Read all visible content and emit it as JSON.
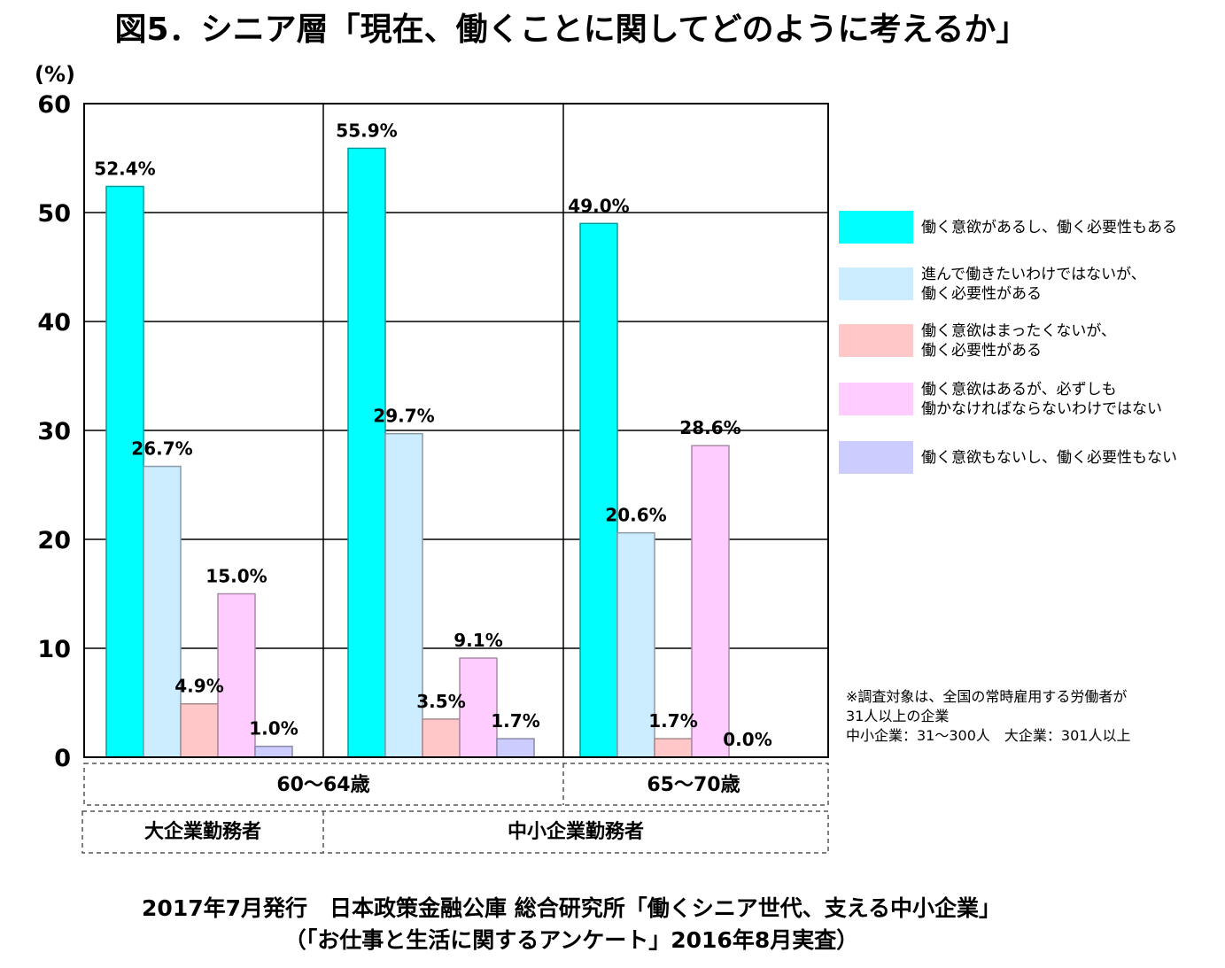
{
  "title": "図5．シニア層「現在、働くことに関してどのように考えるか」",
  "chart_data": {
    "type": "bar",
    "yunit": "(%)",
    "ylim": [
      0,
      60
    ],
    "yticks": [
      "0",
      "10",
      "20",
      "30",
      "40",
      "50",
      "60"
    ],
    "grid": true,
    "legend_position": "right",
    "series": [
      {
        "name": "働く意欲があるし、働く必要性もある",
        "color": "#00FFFF"
      },
      {
        "name": "進んで働きたいわけではないが、働く必要性がある",
        "color": "#CCECFF"
      },
      {
        "name": "働く意欲はまったくないが、働く必要性がある",
        "color": "#FFC7C7"
      },
      {
        "name": "働く意欲はあるが、必ずしも働かなければならないわけではない",
        "color": "#FFCCFF"
      },
      {
        "name": "働く意欲もないし、働く必要性もない",
        "color": "#CCCCFF"
      }
    ],
    "legend_lines": [
      [
        "働く意欲があるし、働く必要性もある"
      ],
      [
        "進んで働きたいわけではないが、",
        "働く必要性がある"
      ],
      [
        "働く意欲はまったくないが、",
        "働く必要性がある"
      ],
      [
        "働く意欲はあるが、必ずしも",
        "働かなければならないわけではない"
      ],
      [
        "働く意欲もないし、働く必要性もない"
      ]
    ],
    "groups": [
      {
        "age": "60〜64歳",
        "company": "大企業勤務者",
        "values": [
          52.4,
          26.7,
          4.9,
          15.0,
          1.0
        ],
        "labels": [
          "52.4%",
          "26.7%",
          "4.9%",
          "15.0%",
          "1.0%"
        ]
      },
      {
        "age": "60〜64歳",
        "company": "中小企業勤務者",
        "values": [
          55.9,
          29.7,
          3.5,
          9.1,
          1.7
        ],
        "labels": [
          "55.9%",
          "29.7%",
          "3.5%",
          "9.1%",
          "1.7%"
        ]
      },
      {
        "age": "65〜70歳",
        "company": "中小企業勤務者",
        "values": [
          49.0,
          20.6,
          1.7,
          28.6,
          0.0
        ],
        "labels": [
          "49.0%",
          "20.6%",
          "1.7%",
          "28.6%",
          "0.0%"
        ]
      }
    ],
    "category_row_age": [
      "60〜64歳",
      "65〜70歳"
    ],
    "category_row_company": [
      "大企業勤務者",
      "中小企業勤務者"
    ]
  },
  "note": [
    "※調査対象は、全国の常時雇用する労働者が",
    "31人以上の企業",
    "中小企業：31〜300人　大企業：301人以上"
  ],
  "source": [
    "2017年7月発行　日本政策金融公庫 総合研究所「働くシニア世代、支える中小企業」",
    "（「お仕事と生活に関するアンケート」2016年8月実査）"
  ]
}
